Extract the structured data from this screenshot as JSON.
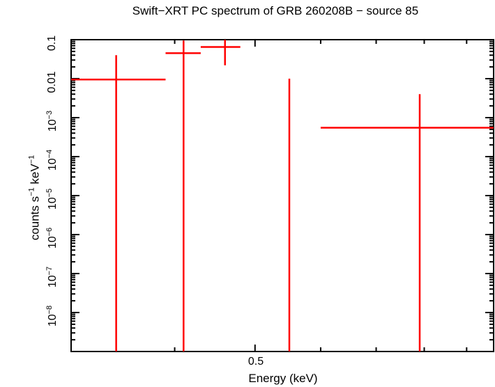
{
  "chart_data": {
    "type": "scatter",
    "title": "Swift−XRT PC spectrum of GRB 260208B − source 85",
    "xlabel": "Energy (keV)",
    "ylabel": "counts s⁻¹ keV⁻¹",
    "xscale": "log",
    "yscale": "log",
    "xlim": [
      0.3,
      0.97
    ],
    "ylim": [
      1e-09,
      0.1
    ],
    "x_tick_labels": [
      "0.5"
    ],
    "y_tick_labels": [
      "0.1",
      "0.01",
      "10⁻³",
      "10⁻⁴",
      "10⁻⁵",
      "10⁻⁶",
      "10⁻⁷",
      "10⁻⁸"
    ],
    "grid": false,
    "legend": null,
    "color": "#ff0000",
    "series": [
      {
        "name": "data",
        "points": [
          {
            "x": 0.34,
            "x_lo": 0.3,
            "x_hi": 0.39,
            "y": 0.0095,
            "y_lo": 1e-09,
            "y_hi": 0.04
          },
          {
            "x": 0.41,
            "x_lo": 0.39,
            "x_hi": 0.43,
            "y": 0.045,
            "y_lo": 1e-09,
            "y_hi": 0.095
          },
          {
            "x": 0.46,
            "x_lo": 0.43,
            "x_hi": 0.48,
            "y": 0.065,
            "y_lo": 0.022,
            "y_hi": 0.1
          },
          {
            "x": 0.55,
            "x_lo": 0.55,
            "x_hi": 0.55,
            "y": null,
            "y_lo": 1e-09,
            "y_hi": 0.01
          },
          {
            "x": 0.79,
            "x_lo": 0.6,
            "x_hi": 0.97,
            "y": 0.00055,
            "y_lo": 1e-09,
            "y_hi": 0.004
          }
        ]
      }
    ]
  },
  "labels": {
    "title": "Swift−XRT PC spectrum of GRB 260208B − source 85",
    "xlabel": "Energy (keV)",
    "ylabel_main": "counts s",
    "ylabel_exp1": "−1",
    "ylabel_mid": " keV",
    "ylabel_exp2": "−1",
    "xtick_0_5": "0.5",
    "ytick_0": "0.1",
    "ytick_1": "0.01",
    "ytick_base": "10",
    "ytick_exp_3": "−3",
    "ytick_exp_4": "−4",
    "ytick_exp_5": "−5",
    "ytick_exp_6": "−6",
    "ytick_exp_7": "−7",
    "ytick_exp_8": "−8"
  }
}
